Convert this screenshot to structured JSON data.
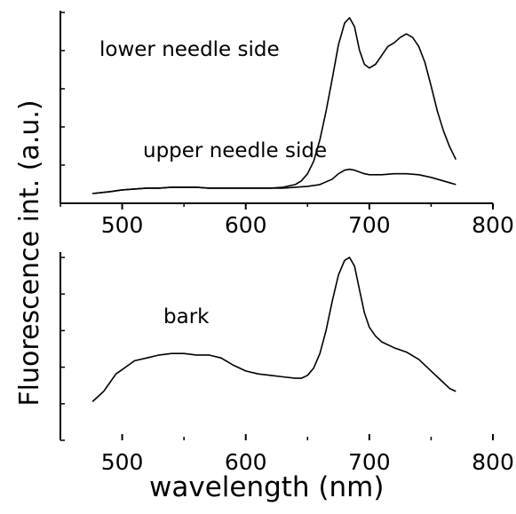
{
  "chart_data": [
    {
      "type": "line",
      "xlabel": "",
      "ylabel": "Fluorescence int. (a.u.)",
      "xlim": [
        450,
        800
      ],
      "ylim": [
        0,
        1
      ],
      "x_ticks": [
        500,
        600,
        700,
        800
      ],
      "grid": false,
      "legend": "none",
      "annotations": [
        {
          "text": "lower needle side",
          "anchor_x": 542,
          "anchor_y": 0.88
        },
        {
          "text": "upper needle side",
          "anchor_x": 632,
          "anchor_y": 0.27
        }
      ],
      "series": [
        {
          "label_ref": 0,
          "x": [
            476,
            490,
            500,
            510,
            520,
            530,
            540,
            550,
            560,
            570,
            580,
            590,
            600,
            610,
            620,
            630,
            640,
            645,
            650,
            655,
            660,
            665,
            670,
            675,
            680,
            684,
            688,
            692,
            696,
            700,
            705,
            710,
            715,
            720,
            725,
            730,
            735,
            740,
            745,
            750,
            755,
            760,
            765,
            770
          ],
          "y": [
            0.02,
            0.03,
            0.04,
            0.045,
            0.05,
            0.05,
            0.055,
            0.055,
            0.055,
            0.05,
            0.05,
            0.05,
            0.05,
            0.05,
            0.05,
            0.055,
            0.07,
            0.09,
            0.13,
            0.2,
            0.32,
            0.48,
            0.66,
            0.85,
            0.97,
            1.0,
            0.95,
            0.82,
            0.74,
            0.72,
            0.74,
            0.79,
            0.84,
            0.86,
            0.89,
            0.91,
            0.89,
            0.84,
            0.75,
            0.62,
            0.48,
            0.37,
            0.28,
            0.21
          ]
        },
        {
          "label_ref": 1,
          "x": [
            476,
            490,
            500,
            510,
            520,
            530,
            540,
            550,
            560,
            570,
            580,
            590,
            600,
            610,
            620,
            630,
            640,
            650,
            660,
            670,
            675,
            680,
            684,
            688,
            692,
            696,
            700,
            710,
            720,
            730,
            740,
            750,
            760,
            770
          ],
          "y": [
            0.02,
            0.03,
            0.04,
            0.045,
            0.05,
            0.05,
            0.055,
            0.055,
            0.055,
            0.05,
            0.05,
            0.05,
            0.05,
            0.05,
            0.05,
            0.05,
            0.055,
            0.06,
            0.07,
            0.1,
            0.13,
            0.15,
            0.155,
            0.15,
            0.14,
            0.13,
            0.125,
            0.125,
            0.13,
            0.13,
            0.125,
            0.11,
            0.09,
            0.07
          ]
        }
      ]
    },
    {
      "type": "line",
      "xlabel": "wavelength (nm)",
      "ylabel": "Fluorescence int. (a.u.)",
      "xlim": [
        450,
        800
      ],
      "ylim": [
        0,
        1
      ],
      "x_ticks": [
        500,
        600,
        700,
        800
      ],
      "grid": false,
      "legend": "none",
      "annotations": [
        {
          "text": "bark",
          "anchor_x": 530,
          "anchor_y": 0.55
        }
      ],
      "series": [
        {
          "label_ref": 0,
          "x": [
            476,
            485,
            490,
            495,
            500,
            505,
            510,
            520,
            530,
            540,
            550,
            560,
            570,
            580,
            590,
            600,
            610,
            620,
            630,
            640,
            645,
            650,
            655,
            660,
            665,
            670,
            675,
            680,
            684,
            688,
            692,
            696,
            700,
            705,
            710,
            720,
            730,
            740,
            750,
            760,
            765,
            770
          ],
          "y": [
            0.01,
            0.08,
            0.14,
            0.2,
            0.23,
            0.26,
            0.29,
            0.31,
            0.33,
            0.34,
            0.34,
            0.33,
            0.33,
            0.31,
            0.26,
            0.22,
            0.2,
            0.19,
            0.18,
            0.17,
            0.17,
            0.19,
            0.24,
            0.34,
            0.5,
            0.7,
            0.88,
            0.98,
            1.0,
            0.94,
            0.78,
            0.62,
            0.52,
            0.46,
            0.42,
            0.38,
            0.35,
            0.3,
            0.22,
            0.14,
            0.1,
            0.08
          ]
        }
      ]
    }
  ]
}
